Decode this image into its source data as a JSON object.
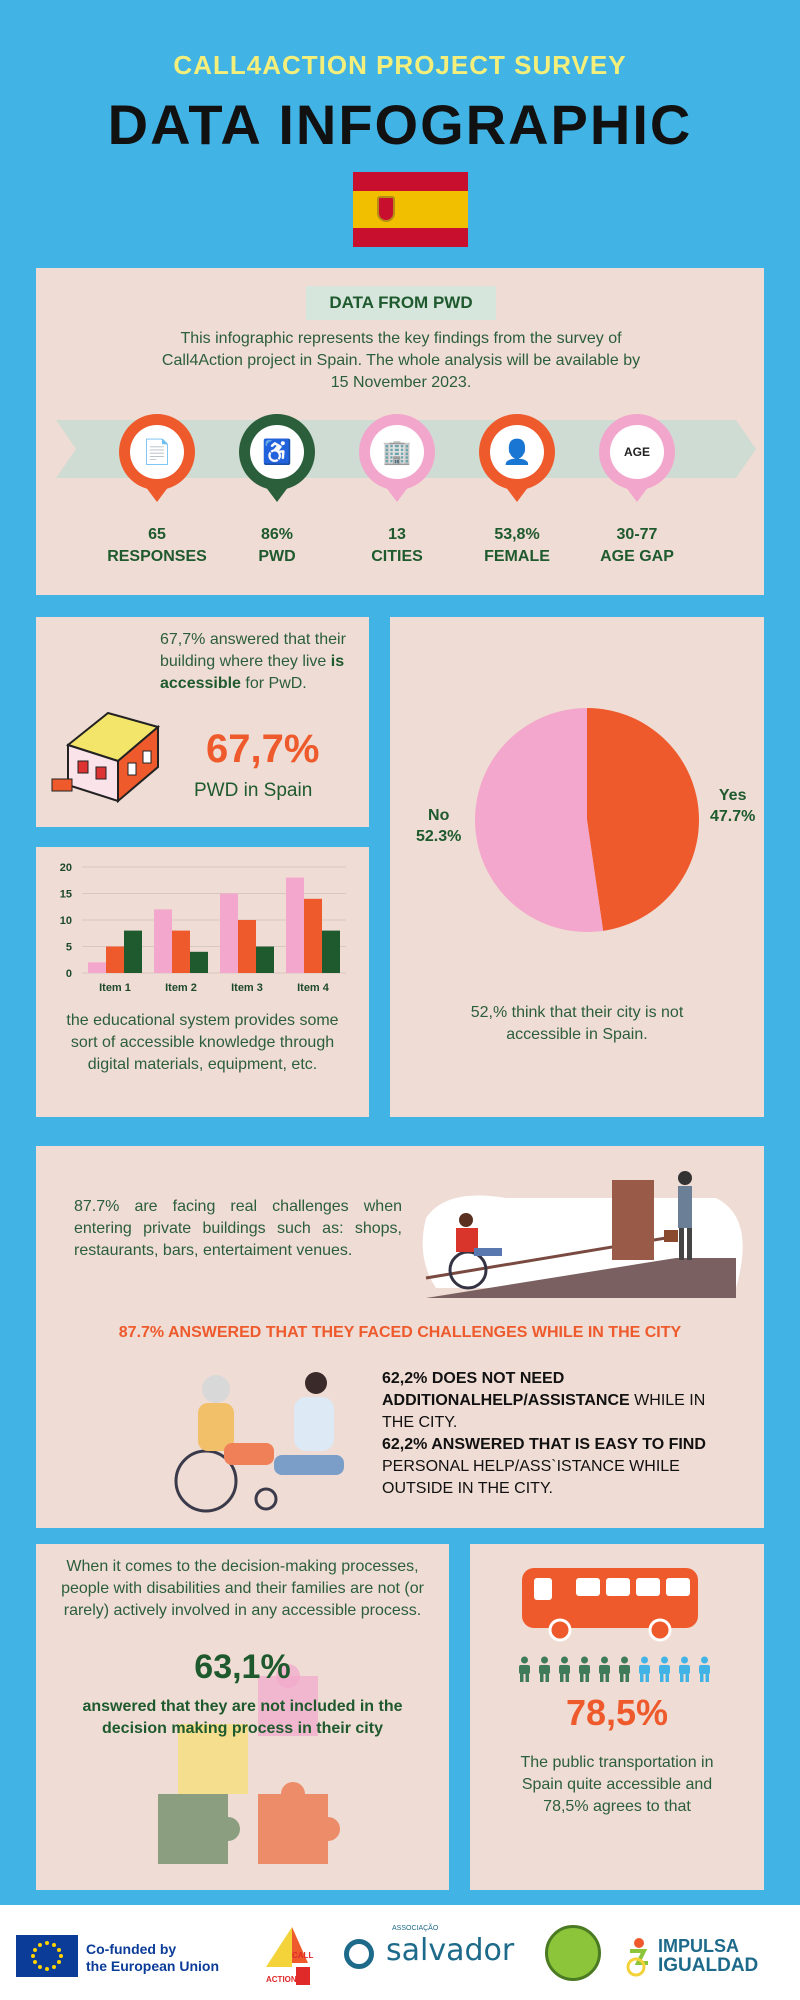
{
  "header": {
    "subtitle": "CALL4ACTION PROJECT SURVEY",
    "title": "DATA INFOGRAPHIC"
  },
  "pwd_section": {
    "badge": "DATA FROM PWD",
    "intro": "This infographic represents the key findings from the survey of Call4Action project in Spain. The whole analysis will be available by 15 November 2023.",
    "stats": [
      {
        "value": "65",
        "label": "RESPONSES",
        "icon": "document-icon",
        "color": "#ee5a2c"
      },
      {
        "value": "86%",
        "label": "PWD",
        "icon": "care-hands-icon",
        "color": "#2b5e3a"
      },
      {
        "value": "13",
        "label": "CITIES",
        "icon": "buildings-icon",
        "color": "#f2a6cc"
      },
      {
        "value": "53,8%",
        "label": "FEMALE",
        "icon": "female-person-icon",
        "color": "#ee5a2c"
      },
      {
        "value": "30-77",
        "label": "AGE GAP",
        "icon": "age-icon",
        "color": "#f2a6cc"
      }
    ]
  },
  "building": {
    "text_pre": "67,7% answered that their building where they live ",
    "text_bold": "is accessible",
    "text_post": " for PwD.",
    "big_value": "67,7%",
    "caption": "PWD in Spain"
  },
  "bar_section": {
    "caption": "the educational system provides some sort of accessible knowledge through digital materials, equipment, etc."
  },
  "pie_section": {
    "yes_label": "Yes",
    "yes_value": "47.7%",
    "no_label": "No",
    "no_value": "52.3%",
    "caption": "52,% think that their city is not accessible in Spain."
  },
  "challenges": {
    "text": "87.7% are facing real challenges when entering private buildings such as: shops, restaurants, bars, entertaiment venues.",
    "heading": "87.7% ANSWERED THAT THEY FACED CHALLENGES WHILE IN THE CITY",
    "help_line1_bold": "62,2% DOES NOT NEED ADDITIONALHELP/ASSISTANCE",
    "help_line1_rest": "  WHILE IN THE CITY.",
    "help_line2_bold": "62,2% ANSWERED THAT IS EASY TO FIND",
    "help_line2_rest": " PERSONAL HELP/ASS`ISTANCE WHILE OUTSIDE IN THE CITY."
  },
  "decision": {
    "text": "When it comes to the decision-making processes, people with disabilities and their families are not (or rarely) actively involved in any accessible process.",
    "big_value": "63,1%",
    "caption": "answered that they are not included in the decision making process in their city"
  },
  "transport": {
    "big_value": "78,5%",
    "caption": "The public transportation in Spain quite accessible and 78,5% agrees to that"
  },
  "footer": {
    "eu_line1": "Co-funded by",
    "eu_line2": "the European Union",
    "call_logo_top": "CALL",
    "call_logo_bottom": "ACTION",
    "salvador_small": "ASSOCIAÇÃO",
    "salvador": "salvador",
    "impulsa_top": "IMPULSA",
    "impulsa_bottom": "IGUALDAD"
  },
  "chart_data": {
    "type": "bar",
    "categories": [
      "Item 1",
      "Item 2",
      "Item 3",
      "Item 4"
    ],
    "series": [
      {
        "values": [
          2,
          12,
          15,
          18
        ],
        "color": "#f4a7cc"
      },
      {
        "values": [
          5,
          8,
          10,
          14
        ],
        "color": "#ee5a2c"
      },
      {
        "values": [
          8,
          4,
          5,
          8
        ],
        "color": "#1f5a2e"
      }
    ],
    "yticks": [
      0,
      5,
      10,
      15,
      20
    ],
    "ylim": [
      0,
      20
    ],
    "grid": true
  },
  "pie_data": {
    "type": "pie",
    "slices": [
      {
        "label": "Yes",
        "value": 47.7,
        "color": "#ee5a2c"
      },
      {
        "label": "No",
        "value": 52.3,
        "color": "#f4a7cc"
      }
    ]
  }
}
